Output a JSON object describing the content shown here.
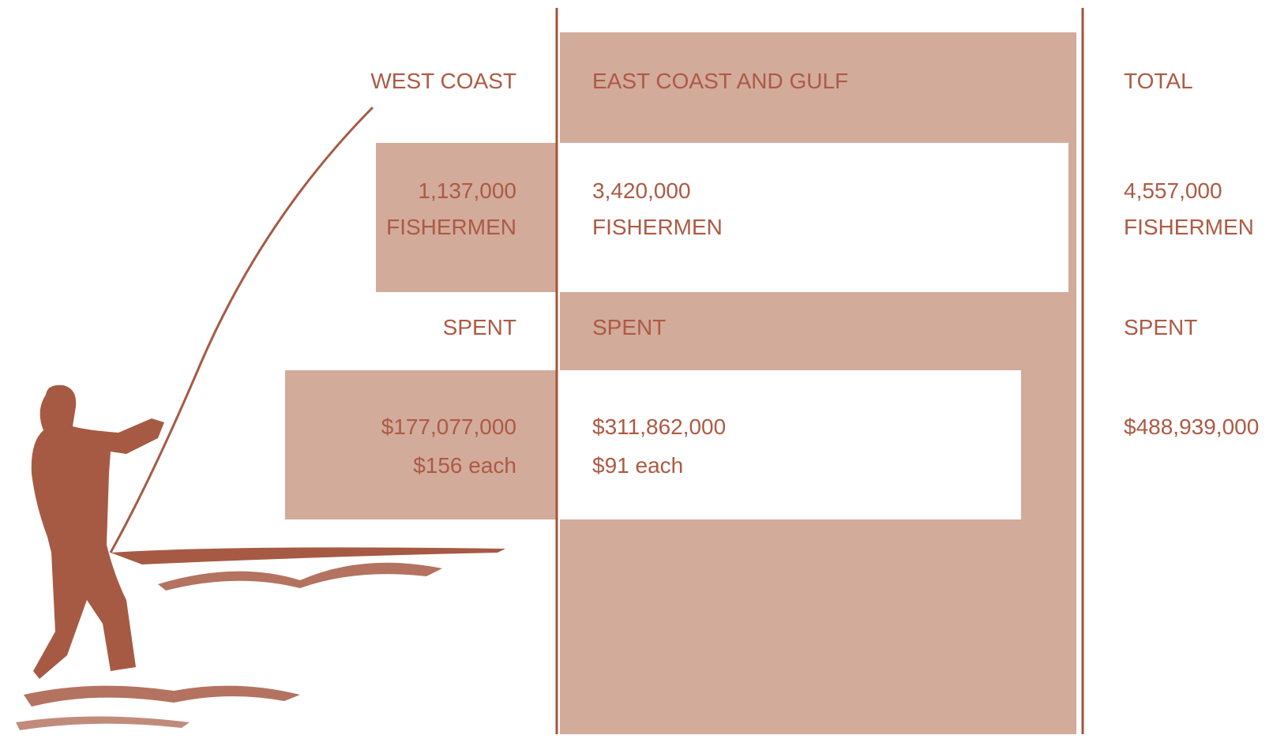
{
  "columns": [
    {
      "heading": "WEST COAST",
      "fishermen": "1,137,000",
      "fishermen_label": "FISHERMEN",
      "spent_label": "SPENT",
      "spent": "$177,077,000",
      "per_each": "$156 each"
    },
    {
      "heading": "EAST COAST AND GULF",
      "fishermen": "3,420,000",
      "fishermen_label": "FISHERMEN",
      "spent_label": "SPENT",
      "spent": "$311,862,000",
      "per_each": "$91 each"
    },
    {
      "heading": "TOTAL",
      "fishermen": "4,557,000",
      "fishermen_label": "FISHERMEN",
      "spent_label": "SPENT",
      "spent": "$488,939,000"
    }
  ]
}
